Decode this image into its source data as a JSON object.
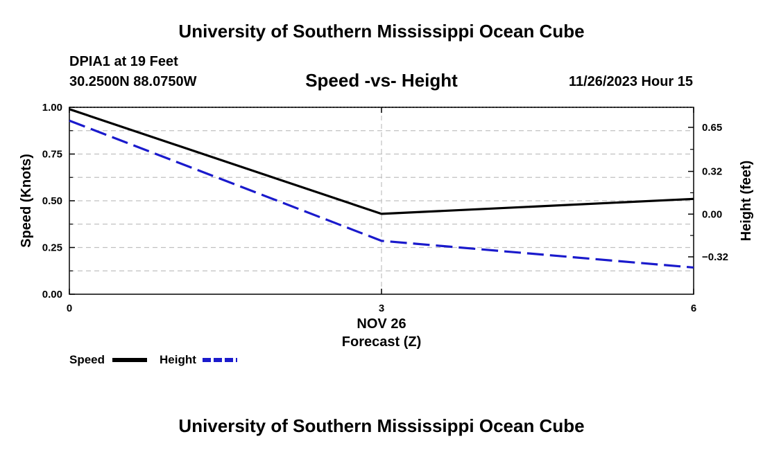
{
  "chart_data": {
    "type": "line",
    "title": "University of Southern Mississippi Ocean Cube",
    "footer_title": "University of Southern Mississippi Ocean Cube",
    "station": "DPIA1 at 19 Feet",
    "coordinates": "30.2500N  88.0750W",
    "subtitle": "Speed -vs- Height",
    "datetime": "11/26/2023 Hour 15",
    "xlabel_date": "NOV 26",
    "xlabel": "Forecast (Z)",
    "ylabel": "Speed (Knots)",
    "y2label": "Height (feet)",
    "x": [
      0,
      3,
      6
    ],
    "x_ticks": [
      "0",
      "3",
      "6"
    ],
    "xlim": [
      0,
      6
    ],
    "ylim": [
      0,
      1
    ],
    "y_ticks": [
      "0.00",
      "0.25",
      "0.50",
      "0.75",
      "1.00"
    ],
    "y_tick_values": [
      0,
      0.25,
      0.5,
      0.75,
      1
    ],
    "y2lim": [
      -0.6,
      0.8
    ],
    "y2_ticks": [
      "0.65",
      "0.32",
      "0.00",
      "−0.32"
    ],
    "y2_tick_values": [
      0.65,
      0.32,
      0.0,
      -0.32
    ],
    "grid": true,
    "series": [
      {
        "name": "Speed",
        "axis": "left",
        "values": [
          0.99,
          0.43,
          0.51
        ],
        "color": "#000000",
        "style": "solid"
      },
      {
        "name": "Height",
        "axis": "right",
        "values": [
          0.7,
          -0.2,
          -0.4
        ],
        "color": "#1a1acc",
        "style": "dashed"
      }
    ],
    "legend": [
      "Speed",
      "Height"
    ]
  }
}
